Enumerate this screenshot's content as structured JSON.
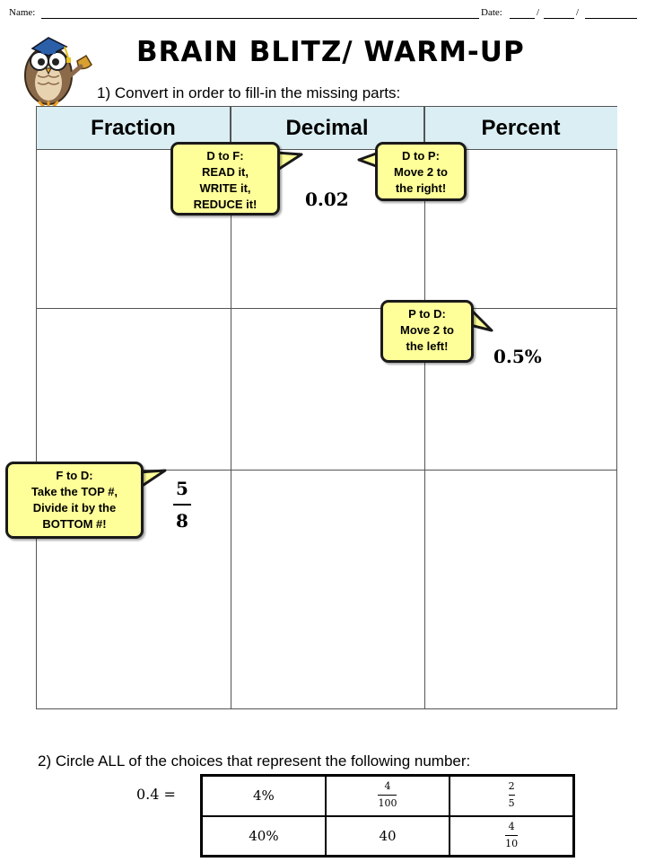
{
  "header": {
    "name_label": "Name:",
    "date_label": "Date:",
    "date_sep": "/"
  },
  "title": "Brain Blitz/ Warm-Up",
  "question1": "1) Convert in order to fill-in the missing parts:",
  "table": {
    "headers": [
      "Fraction",
      "Decimal",
      "Percent"
    ],
    "given": {
      "decimal_row1": "0.02",
      "percent_row2": "0.5%",
      "fraction_row3": {
        "numerator": "5",
        "denominator": "8"
      }
    }
  },
  "bubbles": {
    "d_to_f": [
      "D to F:",
      "READ it,",
      "WRITE it,",
      "REDUCE it!"
    ],
    "d_to_p": [
      "D to P:",
      "Move 2 to",
      "the right!"
    ],
    "p_to_d": [
      "P to D:",
      "Move 2 to",
      "the left!"
    ],
    "f_to_d": [
      "F to D:",
      "Take the TOP #,",
      "Divide it by the",
      "BOTTOM #!"
    ]
  },
  "question2": "2) Circle ALL of the choices that represent the following number:",
  "target_number": "0.4 =",
  "choices": {
    "row1": [
      {
        "text": "4%"
      },
      {
        "numerator": "4",
        "denominator": "100"
      },
      {
        "numerator": "2",
        "denominator": "5"
      }
    ],
    "row2": [
      {
        "text": "40%"
      },
      {
        "text": "40"
      },
      {
        "numerator": "4",
        "denominator": "10"
      }
    ]
  },
  "colors": {
    "header_fill": "#daeef3",
    "bubble_fill": "#ffff99",
    "owl_body": "#8b6a4a",
    "cap": "#2b5fa8"
  },
  "icons": [
    "owl-teacher-icon"
  ]
}
